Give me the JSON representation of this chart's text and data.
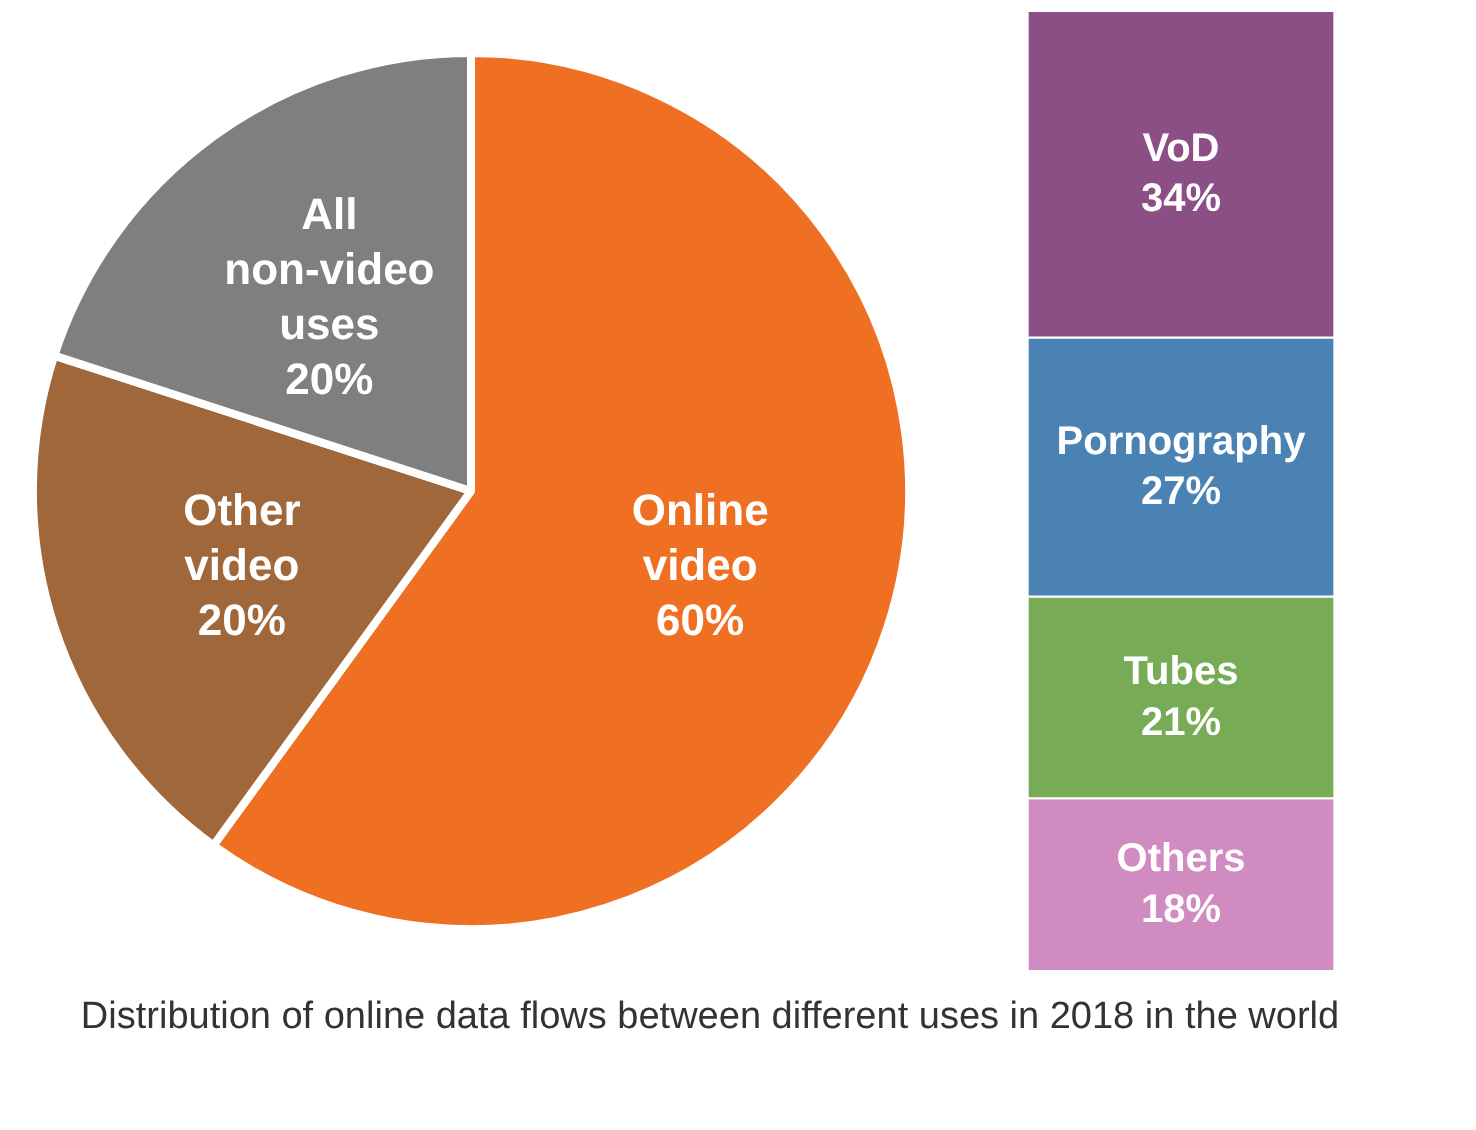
{
  "chart_data": [
    {
      "type": "pie",
      "categories": [
        "Online video",
        "Other video",
        "All non-video uses"
      ],
      "values": [
        60,
        20,
        20
      ],
      "colors": [
        "#f07023",
        "#a0673a",
        "#7f7f7f"
      ],
      "value_labels": [
        "60%",
        "20%",
        "20%"
      ],
      "annotations": [
        "Distribution of online data flows between different uses in 2018 in the world"
      ]
    },
    {
      "type": "bar",
      "stacked": true,
      "categories": [
        null
      ],
      "ylim": [
        0,
        100
      ],
      "tick_labels": false,
      "series": [
        {
          "name": "Others",
          "color": "#d08cc0",
          "values": [
            18
          ],
          "value_labels": [
            "18%"
          ]
        },
        {
          "name": "Tubes",
          "color": "#77ab56",
          "values": [
            21
          ],
          "value_labels": [
            "21%"
          ]
        },
        {
          "name": "Pornography",
          "color": "#4a82b4",
          "values": [
            27
          ],
          "value_labels": [
            "27%"
          ]
        },
        {
          "name": "VoD",
          "color": "#8b4f86",
          "values": [
            34
          ],
          "value_labels": [
            "34%"
          ]
        }
      ]
    }
  ]
}
